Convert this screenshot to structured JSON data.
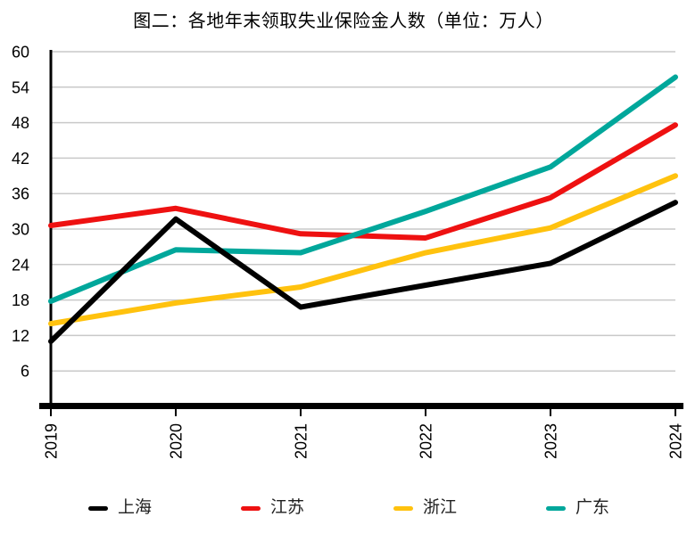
{
  "title": "图二：各地年末领取失业保险金人数（单位：万人）",
  "chart_data": {
    "type": "line",
    "title": "图二：各地年末领取失业保险金人数（单位：万人）",
    "unit": "万人",
    "categories": [
      "2019",
      "2020",
      "2021",
      "2022",
      "2023",
      "2024"
    ],
    "series": [
      {
        "name": "上海",
        "color": "#000000",
        "values": [
          11,
          31.7,
          16.8,
          20.5,
          24.2,
          34.5
        ]
      },
      {
        "name": "江苏",
        "color": "#EE1111",
        "values": [
          30.6,
          33.5,
          29.2,
          28.5,
          35.3,
          47.6
        ]
      },
      {
        "name": "浙江",
        "color": "#FFC20E",
        "values": [
          14,
          17.5,
          20.2,
          26,
          30.2,
          39
        ]
      },
      {
        "name": "广东",
        "color": "#00A79B",
        "values": [
          17.8,
          26.5,
          26,
          33,
          40.5,
          55.7
        ]
      }
    ],
    "xlabel": "",
    "ylabel": "",
    "ylim": [
      0,
      60
    ],
    "yticks": [
      6,
      12,
      18,
      24,
      30,
      36,
      42,
      48,
      54,
      60
    ],
    "grid": true,
    "gridline_color": "#C9C9C9",
    "axis_color": "#000000",
    "x_tick_rotation": 90,
    "legend_position": "bottom",
    "draw_order": [
      1,
      2,
      3,
      0
    ]
  }
}
